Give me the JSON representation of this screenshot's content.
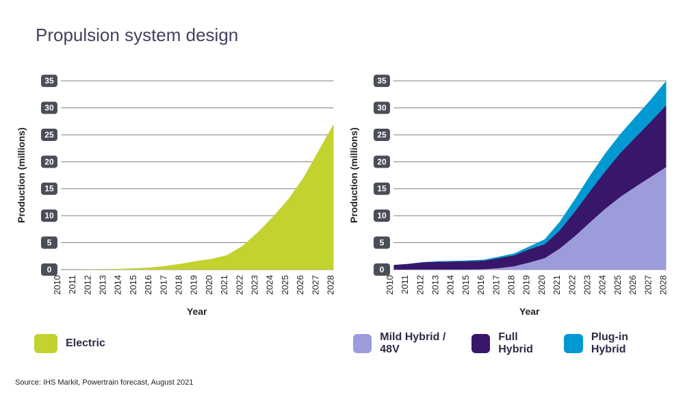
{
  "title": "Propulsion system design",
  "source": "Source: IHS Markit, Powertrain forecast, August 2021",
  "axis": {
    "ylabel": "Production (millions)",
    "xlabel": "Year",
    "years": [
      2010,
      2011,
      2012,
      2013,
      2014,
      2015,
      2016,
      2017,
      2018,
      2019,
      2020,
      2021,
      2022,
      2023,
      2024,
      2025,
      2026,
      2027,
      2028
    ],
    "ylim": [
      0,
      35
    ],
    "ytick_step": 5,
    "yticks": [
      0,
      5,
      10,
      15,
      20,
      25,
      30,
      35
    ],
    "label_fontsize": 14,
    "tick_fontsize": 13,
    "ytick_box_fill": "#4a4e58",
    "ytick_text_fill": "#ffffff",
    "grid_color": "#7d7d85",
    "background_color": "#ffffff"
  },
  "chart_left": {
    "type": "area",
    "series": [
      {
        "name": "Electric",
        "color": "#c4d22f",
        "values": [
          0,
          0,
          0.05,
          0.1,
          0.15,
          0.25,
          0.4,
          0.7,
          1.1,
          1.6,
          2.0,
          2.7,
          4.4,
          6.9,
          9.8,
          13.0,
          17.0,
          22.0,
          27.0
        ]
      }
    ]
  },
  "chart_right": {
    "type": "area",
    "stacked": true,
    "series": [
      {
        "name": "Mild Hybrid / 48V",
        "color": "#9c9cda",
        "values": [
          0,
          0,
          0,
          0,
          0,
          0,
          0.05,
          0.25,
          0.6,
          1.3,
          2.1,
          3.9,
          6.2,
          8.8,
          11.3,
          13.5,
          15.4,
          17.2,
          19.0
        ]
      },
      {
        "name": "Full Hybrid",
        "color": "#38166a",
        "values": [
          0.85,
          1.05,
          1.35,
          1.45,
          1.5,
          1.55,
          1.6,
          1.9,
          2.05,
          2.5,
          2.6,
          3.4,
          4.6,
          5.8,
          7.0,
          8.2,
          9.2,
          10.3,
          11.5
        ]
      },
      {
        "name": "Plug-in Hybrid",
        "color": "#0099d2",
        "values": [
          0,
          0.02,
          0.05,
          0.1,
          0.12,
          0.15,
          0.2,
          0.25,
          0.35,
          0.5,
          0.9,
          1.6,
          2.3,
          2.9,
          3.3,
          3.5,
          3.8,
          4.1,
          4.5
        ]
      }
    ]
  },
  "legend_left": [
    {
      "label": "Electric",
      "color": "#c4d22f"
    }
  ],
  "legend_right": [
    {
      "label": "Mild Hybrid / 48V",
      "color": "#9c9cda"
    },
    {
      "label": "Full Hybrid",
      "color": "#38166a"
    },
    {
      "label": "Plug-in Hybrid",
      "color": "#0099d2"
    }
  ]
}
